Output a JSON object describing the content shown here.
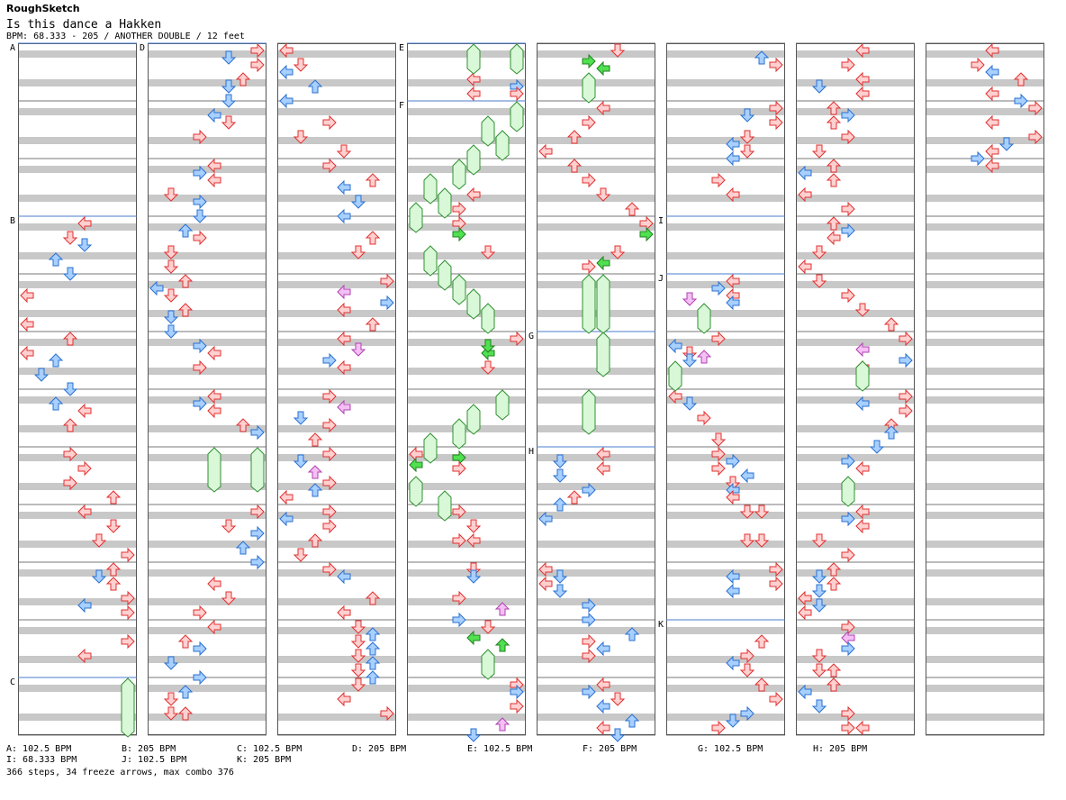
{
  "header": {
    "title": "RoughSketch",
    "song": "Is this dance a Hakken",
    "bpm_line": "BPM: 68.333 - 205 / ANOTHER DOUBLE / 12 feet"
  },
  "colors": {
    "stripe": "#c8c8c8",
    "border": "#555555",
    "section_line": "#4a7ecc",
    "arrow_red_fill": "#ffd0d0",
    "arrow_red_stroke": "#e03030",
    "arrow_blue_fill": "#a8d0ff",
    "arrow_blue_stroke": "#2a70d0",
    "arrow_green_fill": "#50e050",
    "arrow_pink_fill": "#f4c0f4",
    "freeze_fill": "#d8f8d8",
    "freeze_stroke": "#309030"
  },
  "section_labels": [
    "A",
    "B",
    "C",
    "D",
    "E",
    "F",
    "G",
    "H",
    "I",
    "J",
    "K"
  ],
  "bpm_legend": [
    {
      "label": "A: 102.5 BPM"
    },
    {
      "label": "B: 205 BPM"
    },
    {
      "label": "C: 102.5 BPM"
    },
    {
      "label": "D: 205 BPM"
    },
    {
      "label": "E: 102.5 BPM"
    },
    {
      "label": "F: 205 BPM"
    },
    {
      "label": "G: 102.5 BPM"
    },
    {
      "label": "H: 205 BPM"
    },
    {
      "label": "I: 68.333 BPM"
    },
    {
      "label": "J: 102.5 BPM"
    },
    {
      "label": "K: 205 BPM"
    }
  ],
  "stats": "366 steps, 34 freeze arrows, max combo 376"
}
